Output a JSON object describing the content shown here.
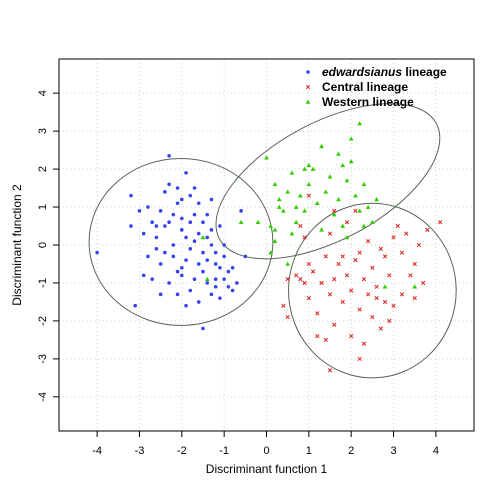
{
  "chart_data": {
    "type": "scatter",
    "xlabel": "Discriminant function 1",
    "ylabel": "Discriminant function 2",
    "xlim": [
      -4.9,
      4.9
    ],
    "ylim": [
      -4.9,
      4.9
    ],
    "x_ticks": [
      -4,
      -3,
      -2,
      -1,
      0,
      1,
      2,
      3,
      4
    ],
    "y_ticks": [
      -4,
      -3,
      -2,
      -1,
      0,
      1,
      2,
      3,
      4
    ],
    "grid": true,
    "legend_position": "top-right",
    "series": [
      {
        "name": "edwardsianus lineage",
        "name_italic_part": "edwardsianus",
        "name_rest": " lineage",
        "marker": "dot",
        "color": "#3344ee",
        "points": [
          [
            -4.0,
            -0.2
          ],
          [
            -3.2,
            1.3
          ],
          [
            -3.1,
            -1.6
          ],
          [
            -2.3,
            2.35
          ],
          [
            -2.0,
            -0.6
          ],
          [
            -3.0,
            0.9
          ],
          [
            -2.9,
            0.3
          ],
          [
            -2.7,
            0.6
          ],
          [
            -2.6,
            -0.1
          ],
          [
            -2.5,
            0.9
          ],
          [
            -2.4,
            0.5
          ],
          [
            -2.3,
            1.6
          ],
          [
            -2.2,
            0.8
          ],
          [
            -2.1,
            1.1
          ],
          [
            -2.0,
            0.4
          ],
          [
            -1.9,
            1.9
          ],
          [
            -1.8,
            1.3
          ],
          [
            -1.7,
            0.8
          ],
          [
            -1.6,
            1.1
          ],
          [
            -1.5,
            0.6
          ],
          [
            -1.4,
            0.2
          ],
          [
            -1.3,
            0.4
          ],
          [
            -1.2,
            -0.2
          ],
          [
            -1.1,
            -0.6
          ],
          [
            -1.0,
            -0.9
          ],
          [
            -0.9,
            -1.1
          ],
          [
            -0.8,
            -1.2
          ],
          [
            -2.8,
            -0.3
          ],
          [
            -2.7,
            -0.9
          ],
          [
            -2.5,
            -0.5
          ],
          [
            -2.3,
            -1.0
          ],
          [
            -2.2,
            -0.3
          ],
          [
            -2.1,
            -1.3
          ],
          [
            -2.0,
            -0.8
          ],
          [
            -1.9,
            -0.4
          ],
          [
            -1.8,
            -1.2
          ],
          [
            -1.7,
            -0.9
          ],
          [
            -1.6,
            -1.5
          ],
          [
            -1.5,
            -0.7
          ],
          [
            -1.4,
            -1.0
          ],
          [
            -1.3,
            -1.3
          ],
          [
            -1.2,
            -0.5
          ],
          [
            -1.1,
            -1.4
          ],
          [
            -1.0,
            -0.3
          ],
          [
            -0.9,
            -0.7
          ],
          [
            -2.4,
            1.4
          ],
          [
            -2.6,
            0.2
          ],
          [
            -2.9,
            -0.8
          ],
          [
            -2.1,
            1.5
          ],
          [
            -1.9,
            0.2
          ],
          [
            -1.7,
            0.1
          ],
          [
            -1.5,
            -0.2
          ],
          [
            -1.4,
            0.8
          ],
          [
            -1.3,
            0.0
          ],
          [
            -2.2,
            0.0
          ],
          [
            -2.0,
            0.7
          ],
          [
            -1.8,
            -0.1
          ],
          [
            -1.6,
            0.3
          ],
          [
            -2.5,
            -1.3
          ],
          [
            -2.3,
            0.6
          ],
          [
            -1.9,
            -1.6
          ],
          [
            -1.5,
            -2.2
          ],
          [
            -2.8,
            1.0
          ],
          [
            -1.2,
            -0.9
          ],
          [
            -1.0,
            0.0
          ],
          [
            -0.7,
            -1.0
          ],
          [
            -0.6,
            0.9
          ],
          [
            -0.5,
            -0.3
          ],
          [
            -1.3,
            1.2
          ],
          [
            -1.7,
            1.5
          ],
          [
            -2.1,
            -0.7
          ],
          [
            -2.6,
            0.5
          ],
          [
            -3.2,
            0.5
          ],
          [
            -2.0,
            1.2
          ],
          [
            -1.4,
            -0.4
          ],
          [
            -1.1,
            0.5
          ],
          [
            -0.8,
            -0.6
          ],
          [
            -1.6,
            -0.5
          ],
          [
            -1.8,
            0.6
          ],
          [
            -2.4,
            -0.2
          ],
          [
            -1.2,
            -1.1
          ]
        ]
      },
      {
        "name": "Central lineage",
        "marker": "cross",
        "color": "#dd2222",
        "points": [
          [
            0.4,
            -1.6
          ],
          [
            0.5,
            -1.9
          ],
          [
            0.7,
            -0.8
          ],
          [
            0.8,
            -0.9
          ],
          [
            0.9,
            -1.0
          ],
          [
            1.0,
            -0.5
          ],
          [
            1.0,
            -1.4
          ],
          [
            1.1,
            -0.7
          ],
          [
            1.2,
            -1.8
          ],
          [
            1.3,
            -1.0
          ],
          [
            1.4,
            -0.3
          ],
          [
            1.5,
            -1.3
          ],
          [
            1.6,
            -0.9
          ],
          [
            1.6,
            -2.1
          ],
          [
            1.7,
            -0.5
          ],
          [
            1.8,
            -1.5
          ],
          [
            1.9,
            -0.8
          ],
          [
            2.0,
            -1.2
          ],
          [
            2.0,
            -2.4
          ],
          [
            2.1,
            -0.4
          ],
          [
            2.2,
            -1.7
          ],
          [
            2.3,
            -0.9
          ],
          [
            2.3,
            -2.6
          ],
          [
            2.4,
            -1.3
          ],
          [
            2.5,
            -0.6
          ],
          [
            2.5,
            -1.9
          ],
          [
            2.6,
            -1.1
          ],
          [
            2.7,
            -2.2
          ],
          [
            2.8,
            -0.3
          ],
          [
            2.8,
            -1.5
          ],
          [
            2.9,
            -0.8
          ],
          [
            3.0,
            -1.6
          ],
          [
            3.0,
            0.2
          ],
          [
            3.1,
            0.5
          ],
          [
            3.2,
            -0.2
          ],
          [
            3.3,
            0.3
          ],
          [
            3.4,
            -0.8
          ],
          [
            3.5,
            -0.5
          ],
          [
            3.6,
            0.0
          ],
          [
            3.7,
            -1.0
          ],
          [
            3.8,
            0.4
          ],
          [
            4.1,
            0.6
          ],
          [
            1.5,
            -3.3
          ],
          [
            2.2,
            -3.0
          ],
          [
            1.2,
            -2.4
          ],
          [
            0.8,
            0.5
          ],
          [
            1.5,
            0.3
          ],
          [
            1.9,
            0.6
          ],
          [
            2.1,
            0.9
          ],
          [
            2.7,
            -0.1
          ],
          [
            3.2,
            -1.3
          ],
          [
            2.6,
            -1.4
          ],
          [
            2.2,
            -0.2
          ],
          [
            1.8,
            -0.3
          ],
          [
            1.0,
            1.3
          ],
          [
            1.6,
            0.9
          ],
          [
            0.9,
            0.2
          ],
          [
            2.4,
            0.1
          ],
          [
            2.9,
            -2.0
          ],
          [
            1.4,
            -2.5
          ],
          [
            0.5,
            -0.9
          ],
          [
            3.5,
            -1.4
          ]
        ]
      },
      {
        "name": "Western lineage",
        "marker": "triangle",
        "color": "#33cc00",
        "points": [
          [
            0.0,
            2.3
          ],
          [
            0.2,
            1.6
          ],
          [
            0.3,
            1.2
          ],
          [
            0.4,
            0.9
          ],
          [
            0.5,
            1.4
          ],
          [
            0.6,
            1.9
          ],
          [
            0.7,
            0.6
          ],
          [
            0.8,
            1.3
          ],
          [
            0.9,
            0.9
          ],
          [
            1.0,
            1.6
          ],
          [
            1.1,
            2.0
          ],
          [
            1.2,
            1.1
          ],
          [
            1.3,
            0.4
          ],
          [
            1.4,
            1.4
          ],
          [
            1.5,
            1.8
          ],
          [
            1.6,
            0.8
          ],
          [
            1.7,
            1.2
          ],
          [
            1.8,
            0.5
          ],
          [
            1.9,
            1.7
          ],
          [
            2.0,
            2.2
          ],
          [
            2.1,
            1.3
          ],
          [
            2.2,
            0.9
          ],
          [
            2.3,
            1.6
          ],
          [
            2.4,
            1.0
          ],
          [
            2.5,
            0.6
          ],
          [
            2.2,
            3.2
          ],
          [
            1.0,
            2.1
          ],
          [
            0.2,
            0.4
          ],
          [
            0.1,
            0.5
          ],
          [
            0.3,
            1.0
          ],
          [
            0.6,
            0.3
          ],
          [
            0.9,
            2.0
          ],
          [
            1.3,
            2.6
          ],
          [
            1.8,
            2.1
          ],
          [
            2.0,
            2.8
          ],
          [
            2.6,
            1.2
          ],
          [
            2.3,
            0.5
          ],
          [
            0.5,
            -0.5
          ],
          [
            2.8,
            -1.1
          ],
          [
            3.5,
            -1.1
          ],
          [
            0.1,
            -0.2
          ],
          [
            -0.2,
            0.6
          ],
          [
            -0.6,
            0.6
          ],
          [
            -1.5,
            0.2
          ],
          [
            -1.4,
            -0.9
          ],
          [
            0.2,
            0.1
          ],
          [
            1.7,
            2.4
          ],
          [
            1.9,
            0.2
          ],
          [
            0.7,
            1.0
          ]
        ]
      }
    ],
    "ellipses": [
      {
        "series": "edwardsianus lineage",
        "cx": -2.02,
        "cy": 0.08,
        "rx": 2.17,
        "ry": 2.2,
        "angle_deg": 0
      },
      {
        "series": "Central lineage",
        "cx": 2.5,
        "cy": -1.2,
        "rx": 1.98,
        "ry": 2.3,
        "angle_deg": 0
      },
      {
        "series": "Western lineage",
        "cx": 1.45,
        "cy": 1.68,
        "rx": 2.9,
        "ry": 1.55,
        "angle_deg": 28
      }
    ]
  }
}
